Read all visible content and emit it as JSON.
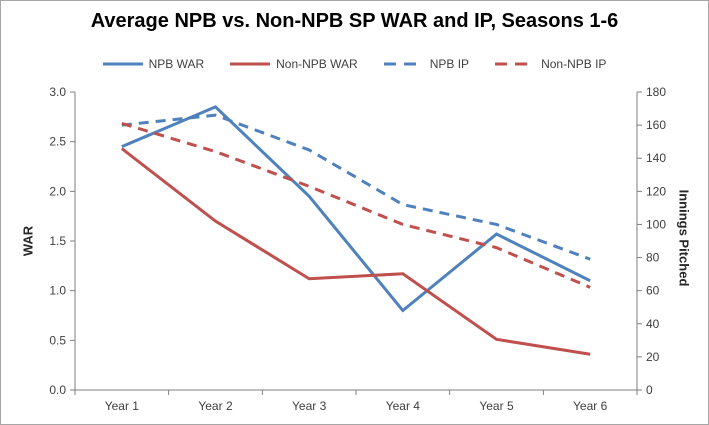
{
  "chart_data": {
    "type": "line",
    "title": "Average NPB vs. Non-NPB SP WAR and IP, Seasons 1-6",
    "categories": [
      "Year 1",
      "Year 2",
      "Year 3",
      "Year 4",
      "Year 5",
      "Year 6"
    ],
    "series": [
      {
        "name": "NPB WAR",
        "axis": "left",
        "line_style": "solid",
        "color": "#4F81BD",
        "values": [
          2.45,
          2.85,
          1.95,
          0.8,
          1.57,
          1.1
        ]
      },
      {
        "name": "Non-NPB WAR",
        "axis": "left",
        "line_style": "solid",
        "color": "#C0504D",
        "values": [
          2.43,
          1.7,
          1.12,
          1.17,
          0.51,
          0.36
        ]
      },
      {
        "name": "NPB IP",
        "axis": "right",
        "line_style": "dashed",
        "color": "#4F81BD",
        "values": [
          160,
          166,
          145,
          112,
          100,
          79
        ]
      },
      {
        "name": "Non-NPB IP",
        "axis": "right",
        "line_style": "dashed",
        "color": "#C0504D",
        "values": [
          161,
          144,
          123,
          100,
          86,
          62
        ]
      }
    ],
    "xlabel": "",
    "ylabel": "WAR",
    "y2label": "Innings Pitched",
    "ylim": [
      0,
      3
    ],
    "y2lim": [
      0,
      180
    ],
    "yticks": [
      "0.0",
      "0.5",
      "1.0",
      "1.5",
      "2.0",
      "2.5",
      "3.0"
    ],
    "y2ticks": [
      "0",
      "20",
      "40",
      "60",
      "80",
      "100",
      "120",
      "140",
      "160",
      "180"
    ],
    "grid": false,
    "legend_position": "top",
    "axis_color": "#7f7f7f"
  }
}
